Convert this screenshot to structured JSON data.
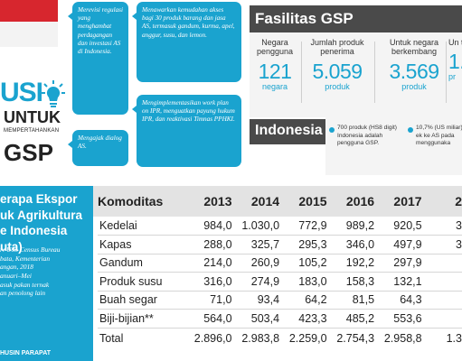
{
  "header": {
    "title_big": "USI",
    "title_untuk": "UNTUK",
    "title_small": "MEMPERTAHANKAN",
    "title_gsp": "GSP"
  },
  "bubbles": [
    "Merevisi regulasi yang menghambat perdagangan dan investasi AS di Indonesia.",
    "Menawarkan kemudahan akses bagi 30 produk barang dan jasa AS, termasuk gandum, kurma, apel, anggur, susu, dan lemon.",
    "Mengimplementasikan work plan on IPR, menguatkan payung hukum IPR, dan reaktivasi Timnas PPHKI.",
    "Mengajak dialog AS."
  ],
  "fasilitas": {
    "title": "Fasilitas GSP",
    "stats": [
      {
        "label": "Negara pengguna",
        "value": "121",
        "unit": "negara"
      },
      {
        "label": "Jumlah produk penerima",
        "value": "5.059",
        "unit": "produk"
      },
      {
        "label": "Untuk negara berkembang",
        "value": "3.569",
        "unit": "produk"
      },
      {
        "label": "Un te",
        "value": "1.",
        "unit": "pr"
      }
    ]
  },
  "indonesia": {
    "title": "Indonesia",
    "notes": [
      "700 produk (HS8 digit) Indonesia adalah pengguna GSP.",
      "10,7% (US miliar) ek ke AS pada menggunaka"
    ]
  },
  "ekspor": {
    "title": "erapa Ekspor\nuk Agrikultura\ne Indonesia\nuta)",
    "source": "r: U.S. Census Bureau\nbata, Kementerian\nangan, 2018\nanuari–Mei\nasuk pakan ternak\nan penolong lain",
    "credit": "HUSIN PARAPAT"
  },
  "table": {
    "head": [
      "Komoditas",
      "2013",
      "2014",
      "2015",
      "2016",
      "2017",
      "2"
    ],
    "rows": [
      [
        "Kedelai",
        "984,0",
        "1.030,0",
        "772,9",
        "989,2",
        "920,5",
        "3"
      ],
      [
        "Kapas",
        "288,0",
        "325,7",
        "295,3",
        "346,0",
        "497,9",
        "3"
      ],
      [
        "Gandum",
        "214,0",
        "260,9",
        "105,2",
        "192,2",
        "297,9",
        ""
      ],
      [
        "Produk susu",
        "316,0",
        "274,9",
        "183,0",
        "158,3",
        "132,1",
        ""
      ],
      [
        "Buah segar",
        "71,0",
        "93,4",
        "64,2",
        "81,5",
        "64,3",
        ""
      ],
      [
        "Biji-bijian**",
        "564,0",
        "503,4",
        "423,3",
        "485,2",
        "553,6",
        ""
      ]
    ],
    "total": [
      "Total",
      "2.896,0",
      "2.983,8",
      "2.259,0",
      "2.754,3",
      "2.958,8",
      "1.3"
    ]
  }
}
